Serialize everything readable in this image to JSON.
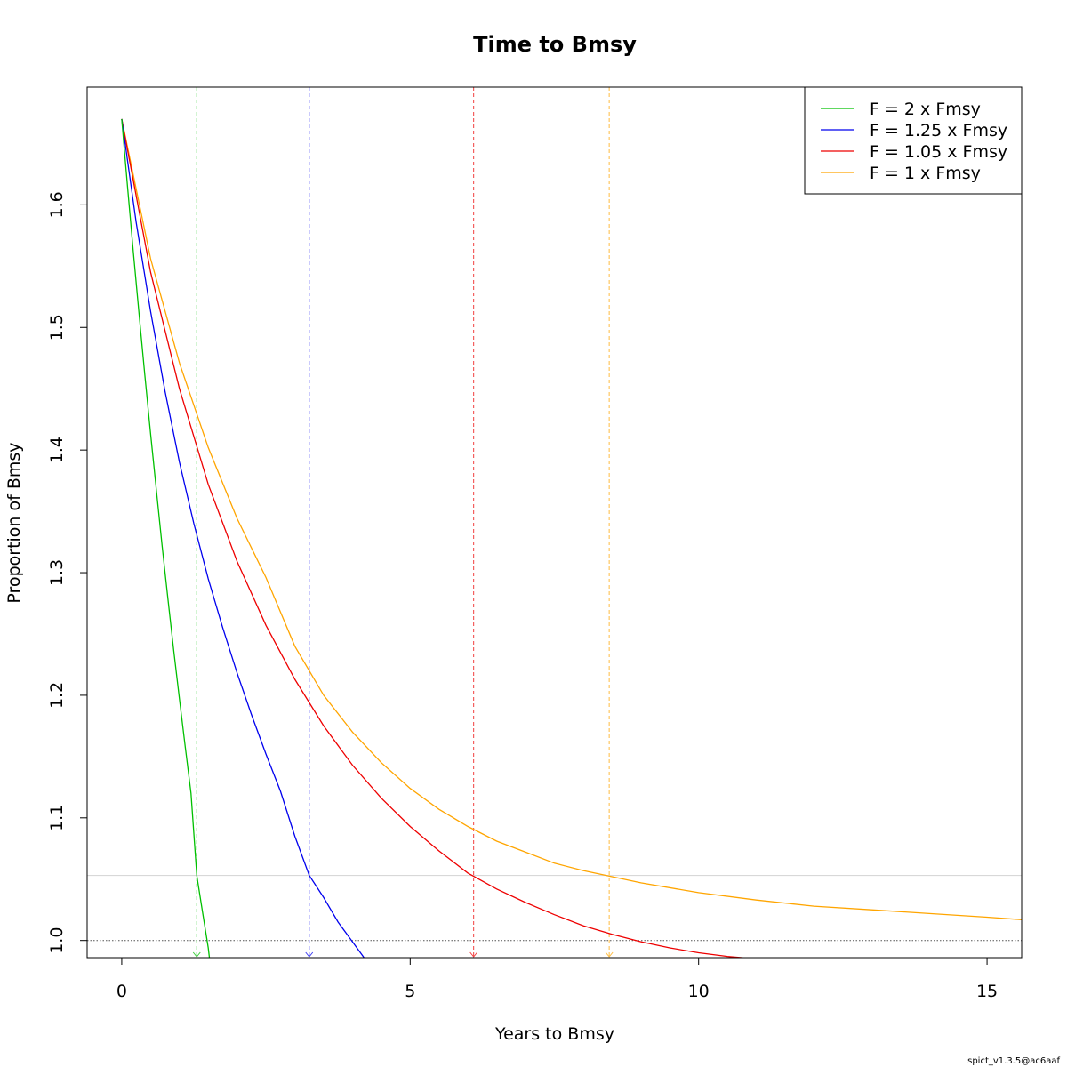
{
  "chart_data": {
    "type": "line",
    "title": "Time to Bmsy",
    "xlabel": "Years to Bmsy",
    "ylabel": "Proportion of Bmsy",
    "xlim": [
      -0.6,
      15.6
    ],
    "ylim": [
      0.986,
      1.696
    ],
    "xticks": [
      0,
      5,
      10,
      15
    ],
    "xtick_labels": [
      "0",
      "5",
      "10",
      "15"
    ],
    "yticks": [
      1.0,
      1.1,
      1.2,
      1.3,
      1.4,
      1.5,
      1.6
    ],
    "ytick_labels": [
      "1.0",
      "1.1",
      "1.2",
      "1.3",
      "1.4",
      "1.5",
      "1.6"
    ],
    "grid": false,
    "legend_position": "top-right",
    "reference_lines": {
      "horizontal_dotted": 1.0,
      "horizontal_gray": 1.053
    },
    "series": [
      {
        "name": "F = 2 x Fmsy",
        "color": "#00c000",
        "time_to_bmsy": 1.3,
        "x": [
          0,
          0.1,
          0.2,
          0.3,
          0.4,
          0.5,
          0.6,
          0.7,
          0.8,
          0.9,
          1.0,
          1.1,
          1.2,
          1.3,
          1.4,
          1.5,
          1.52
        ],
        "y": [
          1.67,
          1.615,
          1.562,
          1.511,
          1.461,
          1.413,
          1.367,
          1.322,
          1.279,
          1.237,
          1.197,
          1.158,
          1.12,
          1.053,
          1.023,
          0.994,
          0.986
        ]
      },
      {
        "name": "F = 1.25 x Fmsy",
        "color": "#0000ee",
        "time_to_bmsy": 3.25,
        "x": [
          0,
          0.25,
          0.5,
          0.75,
          1.0,
          1.25,
          1.5,
          1.75,
          2.0,
          2.25,
          2.5,
          2.75,
          3.0,
          3.25,
          3.5,
          3.75,
          4.0,
          4.2
        ],
        "y": [
          1.67,
          1.586,
          1.513,
          1.448,
          1.39,
          1.34,
          1.295,
          1.255,
          1.218,
          1.184,
          1.152,
          1.122,
          1.085,
          1.053,
          1.035,
          1.015,
          0.999,
          0.986
        ]
      },
      {
        "name": "F = 1.05 x Fmsy",
        "color": "#ee0000",
        "time_to_bmsy": 6.1,
        "x": [
          0,
          0.5,
          1.0,
          1.5,
          2.0,
          2.5,
          3.0,
          3.5,
          4.0,
          4.5,
          5.0,
          5.5,
          6.0,
          6.5,
          7.0,
          7.5,
          8.0,
          8.5,
          9.0,
          9.5,
          10.0,
          10.5,
          11.0
        ],
        "y": [
          1.67,
          1.545,
          1.45,
          1.372,
          1.309,
          1.257,
          1.213,
          1.175,
          1.143,
          1.116,
          1.093,
          1.073,
          1.055,
          1.042,
          1.031,
          1.021,
          1.012,
          1.005,
          0.999,
          0.994,
          0.99,
          0.987,
          0.985
        ]
      },
      {
        "name": "F = 1 x Fmsy",
        "color": "#ffa500",
        "time_to_bmsy": 8.45,
        "x": [
          0,
          0.5,
          1.0,
          1.5,
          2.0,
          2.5,
          3.0,
          3.5,
          4.0,
          4.5,
          5.0,
          5.5,
          6.0,
          6.5,
          7.0,
          7.5,
          8.0,
          8.5,
          9.0,
          10.0,
          11.0,
          12.0,
          13.0,
          14.0,
          15.0,
          15.6
        ],
        "y": [
          1.67,
          1.556,
          1.471,
          1.402,
          1.344,
          1.296,
          1.24,
          1.2,
          1.17,
          1.145,
          1.124,
          1.107,
          1.093,
          1.081,
          1.072,
          1.063,
          1.057,
          1.052,
          1.047,
          1.039,
          1.033,
          1.028,
          1.025,
          1.022,
          1.019,
          1.017
        ]
      }
    ]
  },
  "footer": {
    "version_text": "spict_v1.3.5@ac6aaf"
  }
}
